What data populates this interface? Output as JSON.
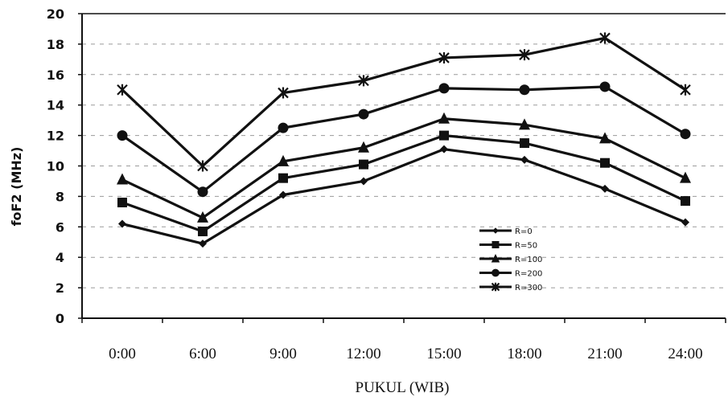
{
  "chart_data": {
    "type": "line",
    "title": "",
    "xlabel": "PUKUL (WIB)",
    "ylabel": "foF2 (MHz)",
    "categories": [
      "0:00",
      "6:00",
      "9:00",
      "12:00",
      "15:00",
      "18:00",
      "21:00",
      "24:00"
    ],
    "ylim": [
      0,
      20
    ],
    "yticks": [
      0,
      2,
      4,
      6,
      8,
      10,
      12,
      14,
      16,
      18,
      20
    ],
    "grid": "horizontal dashed",
    "legend_position": "bottom-right",
    "series": [
      {
        "name": "R=0",
        "marker": "diamond",
        "values": [
          6.2,
          4.9,
          8.1,
          9.0,
          11.1,
          10.4,
          8.5,
          6.3
        ]
      },
      {
        "name": "R=50",
        "marker": "square",
        "values": [
          7.6,
          5.7,
          9.2,
          10.1,
          12.0,
          11.5,
          10.2,
          7.7
        ]
      },
      {
        "name": "R=100",
        "marker": "triangle",
        "values": [
          9.1,
          6.6,
          10.3,
          11.2,
          13.1,
          12.7,
          11.8,
          9.2
        ]
      },
      {
        "name": "R=200",
        "marker": "circle",
        "values": [
          12.0,
          8.3,
          12.5,
          13.4,
          15.1,
          15.0,
          15.2,
          12.1
        ]
      },
      {
        "name": "R=300",
        "marker": "x",
        "values": [
          15.0,
          10.0,
          14.8,
          15.6,
          17.1,
          17.3,
          18.4,
          15.0
        ]
      }
    ],
    "colors": {
      "series": "#111111",
      "grid": "#9a9a9a",
      "axis": "#111111"
    }
  }
}
